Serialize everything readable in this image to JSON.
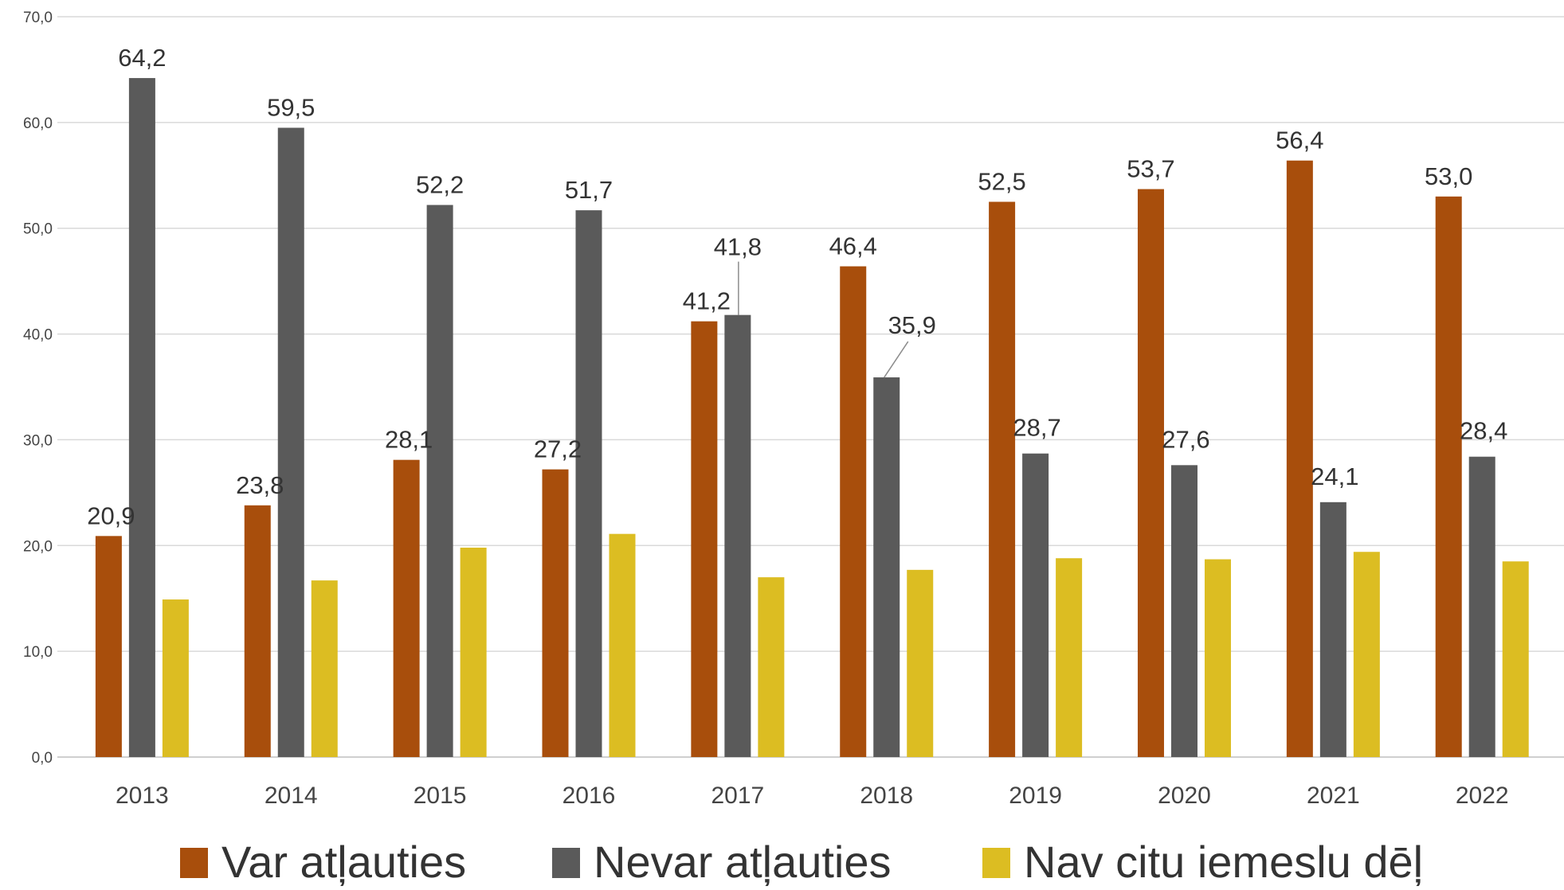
{
  "chart_data": {
    "type": "bar",
    "categories": [
      "2013",
      "2014",
      "2015",
      "2016",
      "2017",
      "2018",
      "2019",
      "2020",
      "2021",
      "2022"
    ],
    "series": [
      {
        "name": "Var atļauties",
        "color": "#A84E0C",
        "values": [
          20.9,
          23.8,
          28.1,
          27.2,
          41.2,
          46.4,
          52.5,
          53.7,
          56.4,
          53.0
        ],
        "labels": [
          "20,9",
          "23,8",
          "28,1",
          "27,2",
          "41,2",
          "46,4",
          "52,5",
          "53,7",
          "56,4",
          "53,0"
        ]
      },
      {
        "name": "Nevar atļauties",
        "color": "#5A5A5A",
        "values": [
          64.2,
          59.5,
          52.2,
          51.7,
          41.8,
          35.9,
          28.7,
          27.6,
          24.1,
          28.4
        ],
        "labels": [
          "64,2",
          "59,5",
          "52,2",
          "51,7",
          "41,8",
          "35,9",
          "28,7",
          "27,6",
          "24,1",
          "28,4"
        ]
      },
      {
        "name": "Nav citu iemeslu dēļ",
        "color": "#DCBD22",
        "values": [
          14.9,
          16.7,
          19.8,
          21.1,
          17.0,
          17.7,
          18.8,
          18.7,
          19.4,
          18.5
        ],
        "labels": null
      }
    ],
    "y_ticks": [
      "0,0",
      "10,0",
      "20,0",
      "30,0",
      "40,0",
      "50,0",
      "60,0",
      "70,0"
    ],
    "ylim": [
      0,
      70
    ],
    "grid": true,
    "legend_position": "bottom",
    "title": "",
    "xlabel": "",
    "ylabel": ""
  }
}
